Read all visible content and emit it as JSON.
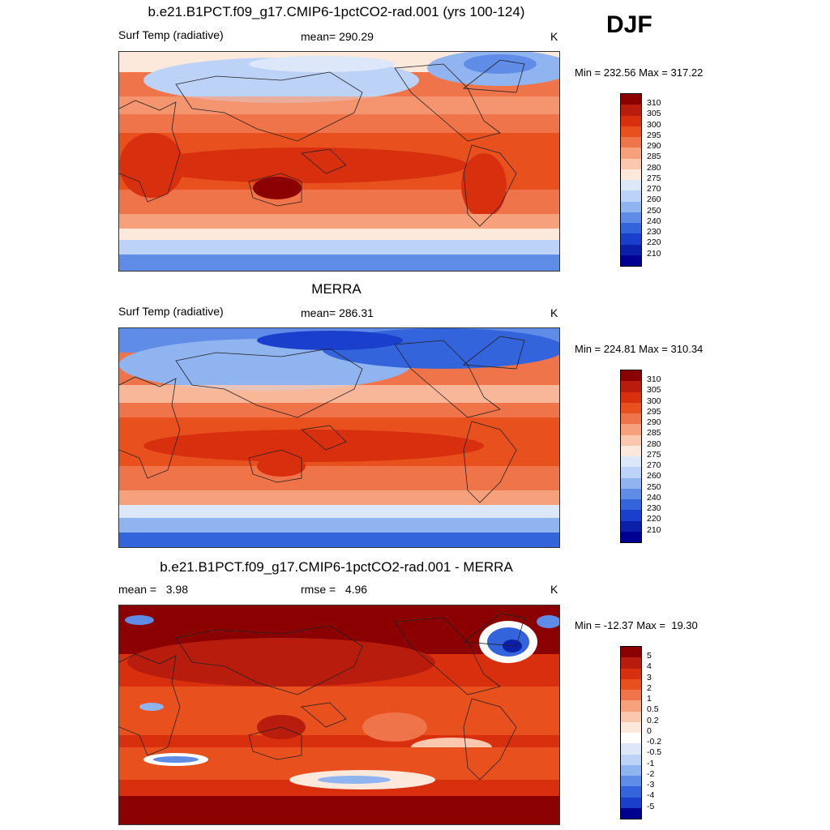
{
  "season": "DJF",
  "panels": [
    {
      "title": "b.e21.B1PCT.f09_g17.CMIP6-1pctCO2-rad.001 (yrs 100-124)",
      "left_label": "Surf Temp (radiative)",
      "center_label": "mean= 290.29",
      "units": "K",
      "minmax": "Min = 232.56 Max = 317.22",
      "scheme": "abs",
      "levels": [
        "310",
        "305",
        "300",
        "295",
        "290",
        "285",
        "280",
        "275",
        "270",
        "260",
        "250",
        "240",
        "230",
        "220",
        "210"
      ]
    },
    {
      "title": "MERRA",
      "left_label": "Surf Temp (radiative)",
      "center_label": "mean= 286.31",
      "units": "K",
      "minmax": "Min = 224.81 Max = 310.34",
      "scheme": "abs",
      "levels": [
        "310",
        "305",
        "300",
        "295",
        "290",
        "285",
        "280",
        "275",
        "270",
        "260",
        "250",
        "240",
        "230",
        "220",
        "210"
      ]
    },
    {
      "title": "b.e21.B1PCT.f09_g17.CMIP6-1pctCO2-rad.001 - MERRA",
      "left_label": "mean =   3.98",
      "center_label": "rmse =   4.96",
      "units": "K",
      "minmax": "Min = -12.37 Max =  19.30",
      "scheme": "diff",
      "levels": [
        "5",
        "4",
        "3",
        "2",
        "1",
        "0.5",
        "0.2",
        "0",
        "-0.2",
        "-0.5",
        "-1",
        "-2",
        "-3",
        "-4",
        "-5"
      ]
    }
  ],
  "colors": {
    "abs": [
      "#8b0000",
      "#b71c0c",
      "#d8300f",
      "#e8501e",
      "#f0744a",
      "#f7a07c",
      "#fbc8ad",
      "#fde9dc",
      "#dce8fa",
      "#bcd3f7",
      "#90b4f0",
      "#5f8ce6",
      "#3464dc",
      "#1a3fcc",
      "#0c1fa8",
      "#000090"
    ],
    "diff": [
      "#8b0000",
      "#b71c0c",
      "#d8300f",
      "#e8501e",
      "#f0744a",
      "#f7a07c",
      "#fbc8ad",
      "#fde9dc",
      "#ffffff",
      "#dce8fa",
      "#bcd3f7",
      "#90b4f0",
      "#5f8ce6",
      "#3464dc",
      "#1a3fcc",
      "#000090"
    ]
  }
}
